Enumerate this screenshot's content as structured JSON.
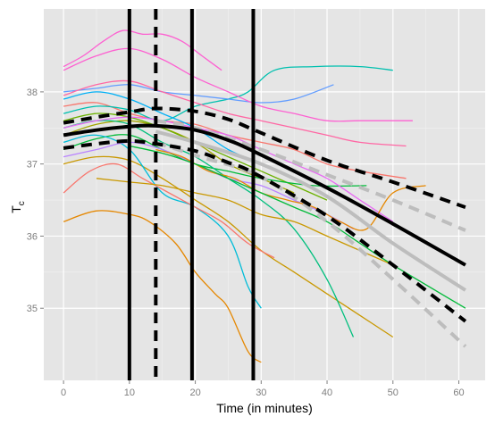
{
  "chart_data": {
    "type": "line",
    "title": "",
    "xlabel": "Time (in minutes)",
    "ylabel_base": "T",
    "ylabel_sub": "c",
    "xlim": [
      -3,
      64
    ],
    "ylim": [
      34.0,
      39.15
    ],
    "x_ticks": [
      0,
      10,
      20,
      30,
      40,
      50,
      60
    ],
    "x_tick_labels": [
      "0",
      "10",
      "20",
      "30",
      "40",
      "50",
      "60"
    ],
    "y_ticks": [
      35,
      36,
      37,
      38
    ],
    "y_tick_labels": [
      "35",
      "36",
      "37",
      "38"
    ],
    "grid": true,
    "legend": "none",
    "vertical_lines": [
      {
        "x": 10,
        "style": "solid",
        "color": "#000000"
      },
      {
        "x": 14,
        "style": "dashed",
        "color": "#000000"
      },
      {
        "x": 19.5,
        "style": "solid",
        "color": "#000000"
      },
      {
        "x": 28.8,
        "style": "solid",
        "color": "#000000"
      }
    ],
    "fitted_lines": [
      {
        "role": "fit",
        "style": "solid",
        "color": "#000000",
        "x": [
          0,
          5,
          10,
          14,
          20,
          25,
          29,
          40,
          50,
          61
        ],
        "y": [
          37.4,
          37.47,
          37.52,
          37.53,
          37.47,
          37.33,
          37.17,
          36.67,
          36.17,
          35.6
        ]
      },
      {
        "role": "upper",
        "style": "dashed",
        "color": "#000000",
        "x": [
          0,
          5,
          10,
          14,
          20,
          25,
          29,
          40,
          50,
          61
        ],
        "y": [
          37.57,
          37.65,
          37.72,
          37.77,
          37.73,
          37.62,
          37.47,
          37.05,
          36.75,
          36.4
        ]
      },
      {
        "role": "lower",
        "style": "dashed",
        "color": "#000000",
        "x": [
          0,
          5,
          10,
          14,
          20,
          25,
          29,
          40,
          50,
          61
        ],
        "y": [
          37.22,
          37.28,
          37.32,
          37.28,
          37.18,
          37.02,
          36.87,
          36.28,
          35.6,
          34.82
        ]
      },
      {
        "role": "fit-alt",
        "style": "solid",
        "color": "#bdbdbd",
        "x": [
          14,
          20,
          30,
          40,
          50,
          61
        ],
        "y": [
          37.45,
          37.3,
          37.0,
          36.55,
          35.9,
          35.25
        ]
      },
      {
        "role": "upper-alt",
        "style": "dashed",
        "color": "#bdbdbd",
        "x": [
          14,
          20,
          30,
          40,
          50,
          61
        ],
        "y": [
          37.6,
          37.5,
          37.2,
          36.85,
          36.5,
          36.08
        ]
      },
      {
        "role": "lower-alt",
        "style": "dashed",
        "color": "#bdbdbd",
        "x": [
          14,
          20,
          30,
          40,
          50,
          61
        ],
        "y": [
          37.3,
          37.12,
          36.82,
          36.2,
          35.4,
          34.47
        ]
      }
    ],
    "subject_series": [
      {
        "color": "#F8766D",
        "x": [
          0,
          5,
          10,
          15,
          20,
          25,
          30,
          35,
          40,
          45,
          52
        ],
        "y": [
          37.8,
          37.85,
          37.7,
          37.6,
          37.55,
          37.4,
          37.3,
          37.2,
          37.0,
          36.9,
          36.8
        ]
      },
      {
        "color": "#E58700",
        "x": [
          0,
          5,
          10,
          13,
          17,
          20,
          23,
          25,
          28,
          30
        ],
        "y": [
          36.2,
          36.35,
          36.3,
          36.2,
          35.9,
          35.5,
          35.2,
          35.0,
          34.4,
          34.25
        ]
      },
      {
        "color": "#C99800",
        "x": [
          0,
          5,
          10,
          15,
          20,
          25,
          30,
          35,
          40,
          45,
          50
        ],
        "y": [
          37.0,
          37.1,
          37.05,
          36.8,
          36.5,
          36.2,
          35.8,
          35.5,
          35.2,
          34.9,
          34.6
        ]
      },
      {
        "color": "#A3A500",
        "x": [
          0,
          5,
          10,
          15,
          20,
          25,
          30,
          35
        ],
        "y": [
          37.4,
          37.55,
          37.6,
          37.5,
          37.3,
          37.0,
          36.8,
          36.6
        ]
      },
      {
        "color": "#6BB100",
        "x": [
          0,
          5,
          10,
          15,
          20,
          25,
          30,
          35,
          40
        ],
        "y": [
          37.6,
          37.7,
          37.65,
          37.5,
          37.3,
          37.1,
          36.9,
          36.7,
          36.5
        ]
      },
      {
        "color": "#00BA38",
        "x": [
          0,
          5,
          10,
          15,
          20,
          25,
          30,
          38,
          46
        ],
        "y": [
          37.2,
          37.35,
          37.4,
          37.2,
          37.0,
          36.9,
          36.8,
          36.7,
          36.7
        ]
      },
      {
        "color": "#00BF7D",
        "x": [
          0,
          5,
          10,
          15,
          20,
          25,
          30,
          35,
          40,
          44
        ],
        "y": [
          37.5,
          37.6,
          37.55,
          37.3,
          37.1,
          36.8,
          36.5,
          36.1,
          35.4,
          34.6
        ]
      },
      {
        "color": "#00C0AF",
        "x": [
          0,
          5,
          10,
          15,
          20,
          25,
          28,
          32,
          38,
          45,
          50
        ],
        "y": [
          37.7,
          37.8,
          37.75,
          37.6,
          37.8,
          37.9,
          38.0,
          38.3,
          38.35,
          38.35,
          38.3
        ]
      },
      {
        "color": "#00BCD8",
        "x": [
          0,
          5,
          10,
          15,
          20,
          25,
          28,
          30
        ],
        "y": [
          37.3,
          37.4,
          37.2,
          36.6,
          36.4,
          36.0,
          35.3,
          35.0
        ]
      },
      {
        "color": "#00B0F6",
        "x": [
          0,
          5,
          10,
          15,
          20,
          25,
          30,
          35
        ],
        "y": [
          37.9,
          38.0,
          37.9,
          37.7,
          37.5,
          37.2,
          37.0,
          36.8
        ]
      },
      {
        "color": "#619CFF",
        "x": [
          0,
          5,
          10,
          15,
          20,
          25,
          30,
          35,
          41
        ],
        "y": [
          38.0,
          38.05,
          38.1,
          38.0,
          37.95,
          37.9,
          37.85,
          37.9,
          38.1
        ]
      },
      {
        "color": "#B983FF",
        "x": [
          0,
          5,
          10,
          15,
          20,
          25,
          30,
          35,
          40,
          44
        ],
        "y": [
          37.1,
          37.2,
          37.3,
          37.2,
          37.0,
          36.8,
          36.7,
          36.5,
          36.3,
          36.1
        ]
      },
      {
        "color": "#E76BF3",
        "x": [
          0,
          5,
          10,
          15,
          20,
          25,
          30,
          35,
          40,
          45,
          50
        ],
        "y": [
          37.5,
          37.6,
          37.65,
          37.6,
          37.5,
          37.4,
          37.2,
          37.0,
          36.8,
          36.5,
          36.2
        ]
      },
      {
        "color": "#FD61D1",
        "x": [
          0,
          5,
          10,
          15,
          20,
          25,
          30,
          35,
          40,
          45,
          53
        ],
        "y": [
          38.3,
          38.5,
          38.6,
          38.45,
          38.2,
          38.0,
          37.8,
          37.7,
          37.6,
          37.6,
          37.6
        ]
      },
      {
        "color": "#FF67A4",
        "x": [
          0,
          5,
          10,
          15,
          20,
          25,
          30,
          35,
          40,
          45,
          52
        ],
        "y": [
          37.95,
          38.1,
          38.15,
          38.0,
          37.85,
          37.7,
          37.6,
          37.5,
          37.4,
          37.3,
          37.25
        ]
      },
      {
        "color": "#F8766D",
        "x": [
          0,
          4,
          8,
          12,
          16,
          20,
          24,
          28,
          32
        ],
        "y": [
          36.6,
          36.9,
          37.0,
          36.8,
          36.6,
          36.4,
          36.2,
          35.9,
          35.7
        ]
      },
      {
        "color": "#E58700",
        "x": [
          14,
          18,
          22,
          26,
          30,
          34,
          38,
          42,
          46,
          50,
          55
        ],
        "y": [
          37.2,
          37.1,
          36.9,
          36.8,
          36.6,
          36.5,
          36.4,
          36.2,
          36.1,
          36.6,
          36.7
        ]
      },
      {
        "color": "#00BA38",
        "x": [
          10,
          15,
          20,
          25,
          30,
          35,
          40,
          45,
          50,
          61
        ],
        "y": [
          37.25,
          37.15,
          37.0,
          36.8,
          36.6,
          36.4,
          36.2,
          35.9,
          35.6,
          35.0
        ]
      },
      {
        "color": "#FD61D1",
        "x": [
          0,
          3,
          6,
          9,
          12,
          15,
          18,
          21,
          24
        ],
        "y": [
          38.35,
          38.5,
          38.7,
          38.85,
          38.8,
          38.8,
          38.7,
          38.5,
          38.3
        ]
      },
      {
        "color": "#C99800",
        "x": [
          5,
          10,
          15,
          20,
          25,
          30,
          35,
          40,
          45,
          50
        ],
        "y": [
          36.8,
          36.75,
          36.7,
          36.6,
          36.5,
          36.3,
          36.2,
          36.0,
          35.8,
          35.6
        ]
      }
    ]
  }
}
